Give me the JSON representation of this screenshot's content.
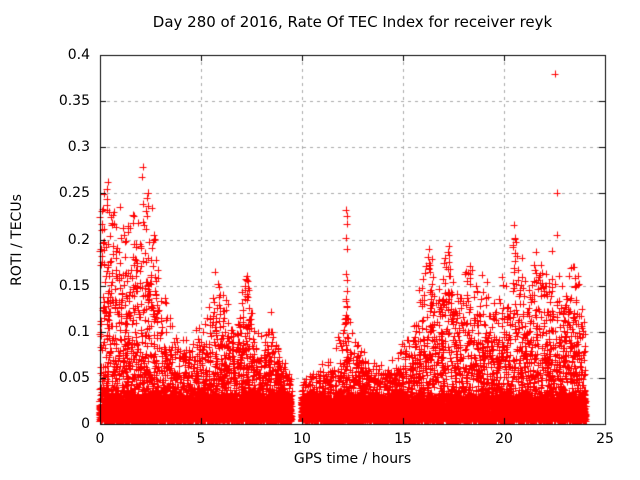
{
  "chart_data": {
    "type": "scatter",
    "title": "Day 280 of 2016, Rate Of TEC Index for receiver reyk",
    "xlabel": "GPS time / hours",
    "ylabel": "ROTI / TECUs",
    "xlim": [
      0,
      25
    ],
    "ylim": [
      0,
      0.4
    ],
    "xticks": [
      0,
      5,
      10,
      15,
      20,
      25
    ],
    "xtick_labels": [
      "0",
      "5",
      "10",
      "15",
      "20",
      "25"
    ],
    "yticks": [
      0,
      0.05,
      0.1,
      0.15,
      0.2,
      0.25,
      0.3,
      0.35,
      0.4
    ],
    "ytick_labels": [
      "0",
      "0.05",
      "0.1",
      "0.15",
      "0.2",
      "0.25",
      "0.3",
      "0.35",
      "0.4"
    ],
    "grid": true,
    "grid_color": "#a8a8a8",
    "frame_color": "#000000",
    "marker": "plus",
    "marker_color": "#ff0000",
    "t_range": [
      0,
      24.05
    ],
    "gaps": [
      [
        9.5,
        9.98
      ]
    ],
    "envelope": [
      [
        0,
        0.245
      ],
      [
        0.35,
        0.24
      ],
      [
        0.6,
        0.23
      ],
      [
        1.0,
        0.215
      ],
      [
        1.4,
        0.21
      ],
      [
        1.8,
        0.205
      ],
      [
        2.1,
        0.24
      ],
      [
        2.4,
        0.252
      ],
      [
        2.7,
        0.19
      ],
      [
        3.0,
        0.14
      ],
      [
        3.4,
        0.105
      ],
      [
        3.9,
        0.085
      ],
      [
        4.4,
        0.08
      ],
      [
        4.8,
        0.105
      ],
      [
        5.2,
        0.1
      ],
      [
        5.6,
        0.135
      ],
      [
        5.9,
        0.152
      ],
      [
        6.2,
        0.125
      ],
      [
        6.6,
        0.105
      ],
      [
        7.0,
        0.13
      ],
      [
        7.3,
        0.16
      ],
      [
        7.6,
        0.105
      ],
      [
        8.0,
        0.085
      ],
      [
        8.5,
        0.105
      ],
      [
        8.9,
        0.08
      ],
      [
        9.2,
        0.06
      ],
      [
        9.5,
        0.045
      ],
      [
        10.0,
        0.045
      ],
      [
        10.4,
        0.05
      ],
      [
        10.8,
        0.055
      ],
      [
        11.2,
        0.06
      ],
      [
        11.6,
        0.07
      ],
      [
        12.0,
        0.1
      ],
      [
        12.2,
        0.17
      ],
      [
        12.45,
        0.095
      ],
      [
        12.8,
        0.075
      ],
      [
        13.2,
        0.065
      ],
      [
        13.7,
        0.06
      ],
      [
        14.2,
        0.06
      ],
      [
        14.7,
        0.07
      ],
      [
        15.2,
        0.08
      ],
      [
        15.6,
        0.1
      ],
      [
        16.0,
        0.15
      ],
      [
        16.3,
        0.185
      ],
      [
        16.7,
        0.135
      ],
      [
        17.0,
        0.165
      ],
      [
        17.3,
        0.18
      ],
      [
        17.6,
        0.14
      ],
      [
        18.0,
        0.155
      ],
      [
        18.3,
        0.165
      ],
      [
        18.7,
        0.15
      ],
      [
        19.0,
        0.145
      ],
      [
        19.4,
        0.115
      ],
      [
        19.8,
        0.135
      ],
      [
        20.2,
        0.155
      ],
      [
        20.5,
        0.205
      ],
      [
        20.8,
        0.155
      ],
      [
        21.2,
        0.145
      ],
      [
        21.5,
        0.175
      ],
      [
        21.8,
        0.165
      ],
      [
        22.2,
        0.15
      ],
      [
        22.5,
        0.175
      ],
      [
        22.8,
        0.135
      ],
      [
        23.1,
        0.145
      ],
      [
        23.5,
        0.165
      ],
      [
        23.8,
        0.135
      ],
      [
        24.05,
        0.11
      ]
    ],
    "outliers": [
      [
        22.52,
        0.379
      ],
      [
        22.6,
        0.25
      ],
      [
        22.62,
        0.205
      ],
      [
        2.38,
        0.25
      ],
      [
        2.15,
        0.238
      ],
      [
        2.28,
        0.231
      ],
      [
        2.33,
        0.225
      ],
      [
        2.2,
        0.216
      ],
      [
        0.35,
        0.237
      ],
      [
        0.45,
        0.23
      ],
      [
        0.55,
        0.224
      ],
      [
        0.64,
        0.227
      ],
      [
        0.05,
        0.19
      ],
      [
        0.1,
        0.182
      ],
      [
        1.12,
        0.212
      ],
      [
        1.2,
        0.205
      ],
      [
        1.3,
        0.198
      ],
      [
        1.63,
        0.218
      ],
      [
        1.7,
        0.195
      ],
      [
        12.18,
        0.232
      ],
      [
        12.21,
        0.225
      ],
      [
        12.24,
        0.217
      ],
      [
        12.2,
        0.202
      ],
      [
        12.22,
        0.19
      ],
      [
        12.19,
        0.163
      ],
      [
        12.21,
        0.156
      ],
      [
        12.23,
        0.144
      ],
      [
        12.2,
        0.136
      ],
      [
        12.22,
        0.128
      ],
      [
        12.2,
        0.109
      ],
      [
        16.28,
        0.19
      ],
      [
        16.24,
        0.181
      ],
      [
        16.32,
        0.172
      ],
      [
        17.08,
        0.18
      ],
      [
        17.3,
        0.176
      ],
      [
        17.33,
        0.168
      ],
      [
        17.28,
        0.16
      ],
      [
        18.3,
        0.158
      ],
      [
        18.62,
        0.15
      ],
      [
        18.95,
        0.143
      ],
      [
        20.5,
        0.216
      ],
      [
        20.52,
        0.201
      ],
      [
        20.47,
        0.192
      ],
      [
        20.55,
        0.185
      ],
      [
        21.5,
        0.172
      ],
      [
        21.56,
        0.164
      ],
      [
        21.8,
        0.161
      ],
      [
        21.77,
        0.153
      ],
      [
        23.5,
        0.158
      ],
      [
        23.56,
        0.15
      ],
      [
        23.68,
        0.16
      ],
      [
        23.72,
        0.152
      ],
      [
        5.88,
        0.148
      ],
      [
        5.92,
        0.14
      ],
      [
        5.62,
        0.132
      ],
      [
        7.3,
        0.156
      ],
      [
        7.33,
        0.147
      ],
      [
        7.28,
        0.139
      ],
      [
        8.52,
        0.1
      ],
      [
        8.55,
        0.094
      ]
    ],
    "n_points": 12000,
    "band_points": 3200,
    "shape": 4,
    "seed": 2016280
  }
}
